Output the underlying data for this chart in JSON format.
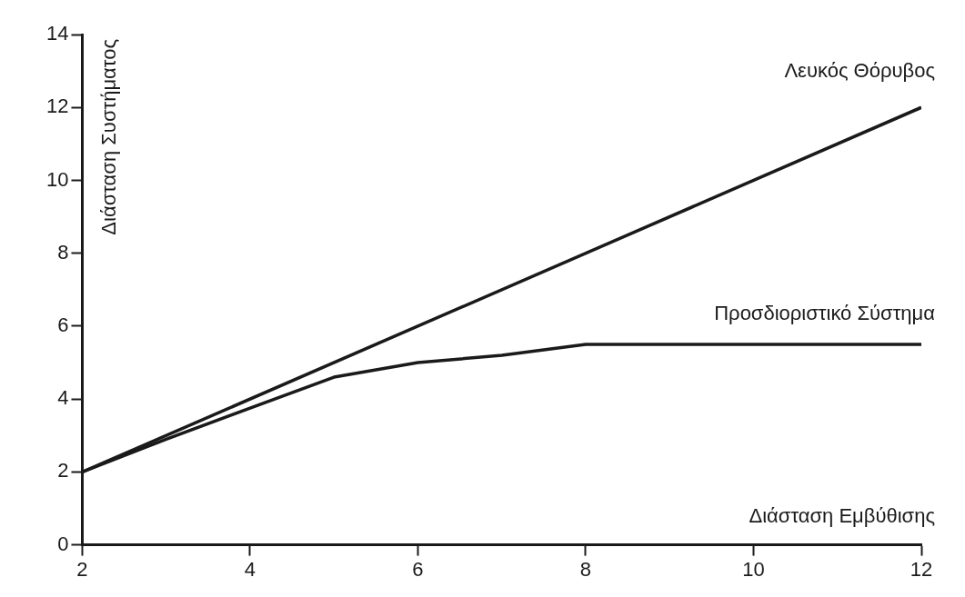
{
  "chart_data": {
    "type": "line",
    "xlabel": "Διάσταση Εμβύθισης",
    "ylabel": "Διάσταση Συστήματος",
    "series": [
      {
        "name": "Λευκός Θόρυβος",
        "color": "#1a1a1a",
        "x": [
          2,
          12
        ],
        "values": [
          2,
          12
        ]
      },
      {
        "name": "Προσδιοριστικό Σύστημα",
        "color": "#1a1a1a",
        "x": [
          2,
          3,
          4,
          5,
          6,
          7,
          8,
          12
        ],
        "values": [
          2,
          2.9,
          3.75,
          4.6,
          5.0,
          5.2,
          5.5,
          5.5
        ]
      }
    ],
    "xlim": [
      2,
      12
    ],
    "xticks": [
      2,
      4,
      6,
      8,
      10,
      12
    ],
    "ylim": [
      0,
      14
    ],
    "yticks": [
      0,
      2,
      4,
      6,
      8,
      10,
      12,
      14
    ],
    "grid": false,
    "legend": false,
    "marker": "none",
    "line_style": "solid"
  }
}
